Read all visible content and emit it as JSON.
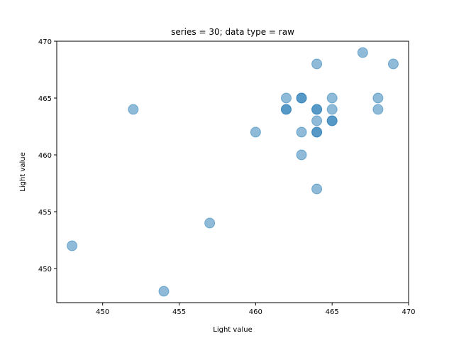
{
  "chart_data": {
    "type": "scatter",
    "title": "series = 30; data type = raw",
    "xlabel": "Light value",
    "ylabel": "Light value",
    "xlim": [
      447,
      470
    ],
    "ylim": [
      447,
      470
    ],
    "xticks": [
      450,
      455,
      460,
      465,
      470
    ],
    "yticks": [
      450,
      455,
      460,
      465,
      470
    ],
    "xtick_labels": [
      "450",
      "455",
      "460",
      "465",
      "470"
    ],
    "ytick_labels": [
      "450",
      "455",
      "460",
      "465",
      "470"
    ],
    "grid": false,
    "marker_color": "#1f77b4",
    "marker_alpha": 0.5,
    "points": [
      {
        "x": 448,
        "y": 452
      },
      {
        "x": 452,
        "y": 464
      },
      {
        "x": 454,
        "y": 448
      },
      {
        "x": 457,
        "y": 454
      },
      {
        "x": 460,
        "y": 462
      },
      {
        "x": 462,
        "y": 465
      },
      {
        "x": 462,
        "y": 464
      },
      {
        "x": 462,
        "y": 464
      },
      {
        "x": 463,
        "y": 465
      },
      {
        "x": 463,
        "y": 465
      },
      {
        "x": 463,
        "y": 462
      },
      {
        "x": 463,
        "y": 460
      },
      {
        "x": 464,
        "y": 468
      },
      {
        "x": 464,
        "y": 464
      },
      {
        "x": 464,
        "y": 464
      },
      {
        "x": 464,
        "y": 463
      },
      {
        "x": 464,
        "y": 462
      },
      {
        "x": 464,
        "y": 462
      },
      {
        "x": 464,
        "y": 457
      },
      {
        "x": 465,
        "y": 465
      },
      {
        "x": 465,
        "y": 464
      },
      {
        "x": 465,
        "y": 463
      },
      {
        "x": 465,
        "y": 463
      },
      {
        "x": 467,
        "y": 469
      },
      {
        "x": 468,
        "y": 465
      },
      {
        "x": 468,
        "y": 464
      },
      {
        "x": 469,
        "y": 468
      }
    ]
  }
}
